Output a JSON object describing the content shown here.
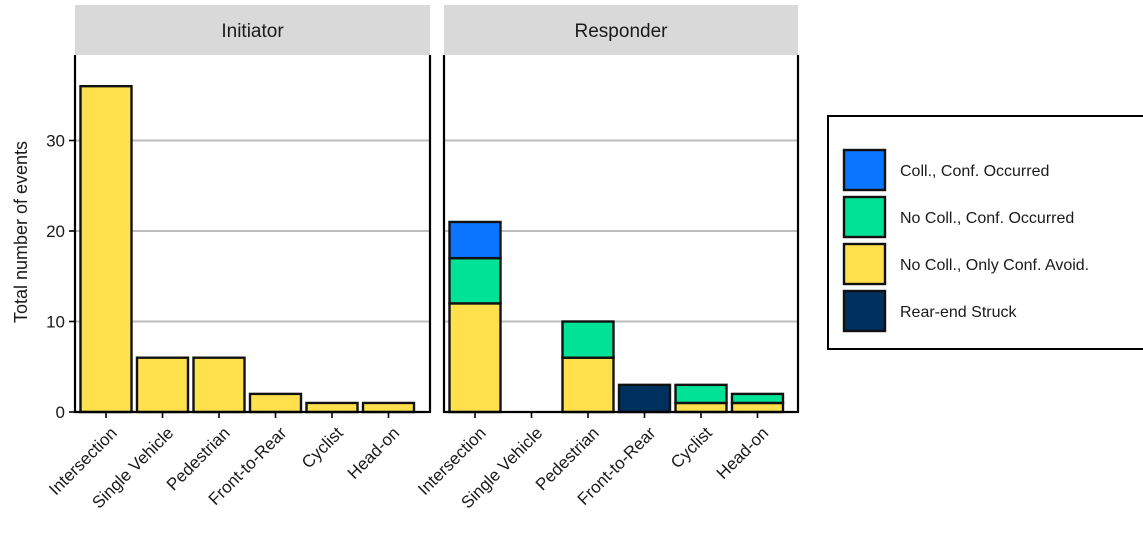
{
  "chart_data": {
    "type": "bar",
    "stacked": true,
    "ylabel": "Total number of events",
    "xlabel": "",
    "ylim": [
      0,
      39
    ],
    "yticks": [
      0,
      10,
      20,
      30
    ],
    "grid": true,
    "legend_position": "right",
    "categories": [
      "Intersection",
      "Single Vehicle",
      "Pedestrian",
      "Front-to-Rear",
      "Cyclist",
      "Head-on"
    ],
    "legend": [
      {
        "key": "coll",
        "name": "Coll., Conf. Occurred",
        "color": "#0a75ff"
      },
      {
        "key": "nocoll_conf",
        "name": "No Coll., Conf. Occurred",
        "color": "#00e396"
      },
      {
        "key": "nocoll_avoid",
        "name": "No Coll., Only Conf. Avoid.",
        "color": "#ffe14d"
      },
      {
        "key": "rearend",
        "name": "Rear-end Struck",
        "color": "#00305e"
      }
    ],
    "stack_order": [
      "nocoll_avoid",
      "rearend",
      "nocoll_conf",
      "coll"
    ],
    "panels": [
      {
        "title": "Initiator",
        "series": {
          "nocoll_avoid": [
            36,
            6,
            6,
            2,
            1,
            1
          ],
          "rearend": [
            0,
            0,
            0,
            0,
            0,
            0
          ],
          "nocoll_conf": [
            0,
            0,
            0,
            0,
            0,
            0
          ],
          "coll": [
            0,
            0,
            0,
            0,
            0,
            0
          ]
        }
      },
      {
        "title": "Responder",
        "series": {
          "nocoll_avoid": [
            12,
            0,
            6,
            0,
            1,
            1
          ],
          "rearend": [
            0,
            0,
            0,
            3,
            0,
            0
          ],
          "nocoll_conf": [
            5,
            0,
            4,
            0,
            2,
            1
          ],
          "coll": [
            4,
            0,
            0,
            0,
            0,
            0
          ]
        }
      }
    ]
  }
}
